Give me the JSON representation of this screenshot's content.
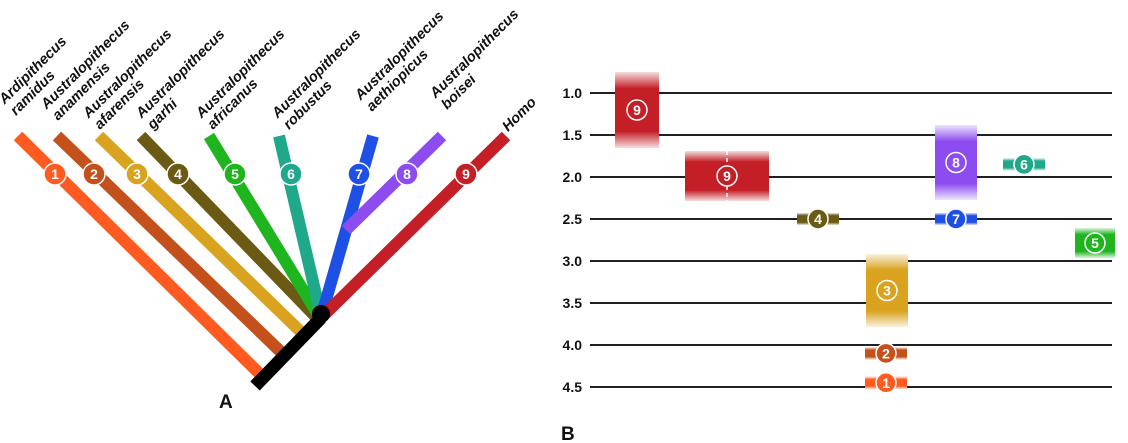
{
  "panel_labels": {
    "a": "A",
    "b": "B"
  },
  "colors": {
    "stem": "#000000",
    "1": "#ff5a1f",
    "2": "#c4501b",
    "3": "#d9a31f",
    "4": "#6b5a14",
    "5": "#1fb51f",
    "6": "#1fa88a",
    "7": "#1f50e6",
    "8": "#8c4cf0",
    "9": "#c41e26"
  },
  "taxa": [
    {
      "num": "1",
      "genus": "Ardipithecus",
      "species": "ramidus"
    },
    {
      "num": "2",
      "genus": "Australopithecus",
      "species": "anamensis"
    },
    {
      "num": "3",
      "genus": "Australopithecus",
      "species": "afarensis"
    },
    {
      "num": "4",
      "genus": "Australopithecus",
      "species": "garhi"
    },
    {
      "num": "5",
      "genus": "Australopithecus",
      "species": "africanus"
    },
    {
      "num": "6",
      "genus": "Australopithecus",
      "species": "robustus"
    },
    {
      "num": "7",
      "genus": "Australopithecus",
      "species": "aethiopicus"
    },
    {
      "num": "8",
      "genus": "Australopithecus",
      "species": "boisei"
    },
    {
      "num": "9",
      "genus": "",
      "species": "Homo"
    }
  ],
  "time_axis": {
    "ticks": [
      "1.0",
      "1.5",
      "2.0",
      "2.5",
      "3.0",
      "3.5",
      "4.0",
      "4.5"
    ]
  },
  "time_ranges": [
    {
      "num": "9",
      "start": 1.0,
      "end": 1.6
    },
    {
      "num": "9",
      "start": 1.7,
      "end": 2.3,
      "dashed": true
    },
    {
      "num": "4",
      "start": 2.5,
      "end": 2.5
    },
    {
      "num": "3",
      "start": 2.95,
      "end": 3.75
    },
    {
      "num": "2",
      "start": 4.1,
      "end": 4.1
    },
    {
      "num": "1",
      "start": 4.45,
      "end": 4.45
    },
    {
      "num": "8",
      "start": 1.4,
      "end": 2.25
    },
    {
      "num": "7",
      "start": 2.5,
      "end": 2.5
    },
    {
      "num": "6",
      "start": 1.85,
      "end": 1.85
    },
    {
      "num": "5",
      "start": 2.7,
      "end": 2.9
    }
  ]
}
